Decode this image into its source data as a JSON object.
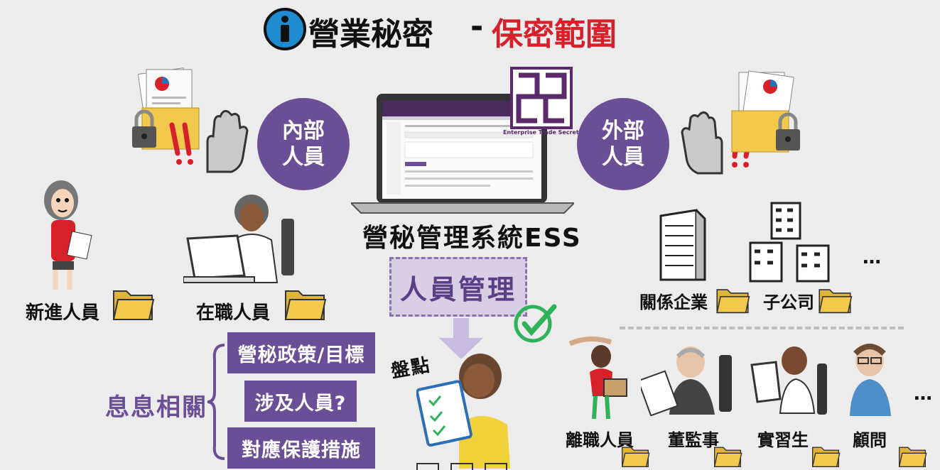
{
  "title": {
    "part1": "營業秘密",
    "dash": "-",
    "part2": "保密範圍"
  },
  "internal": {
    "circle": "內部\n人員",
    "people": [
      "新進人員",
      "在職人員"
    ]
  },
  "external": {
    "circle": "外部\n人員",
    "entities": [
      "關係企業",
      "子公司"
    ],
    "more": "…"
  },
  "ess": {
    "logo_caption": "Enterprise Trade Secret System",
    "system_label": "營秘管理系統ESS",
    "box": "人員管理"
  },
  "related": {
    "label": "息息相關",
    "items": [
      "營秘政策/目標",
      "涉及人員?",
      "對應保護措施"
    ]
  },
  "inventory": {
    "label": "盤點"
  },
  "others": {
    "people": [
      "離職人員",
      "董監事",
      "實習生",
      "顧問"
    ],
    "more": "…"
  },
  "colors": {
    "purple": "#6b4f96",
    "red": "#d6212b",
    "folder": "#f2c94c",
    "check": "#2fb25a"
  }
}
